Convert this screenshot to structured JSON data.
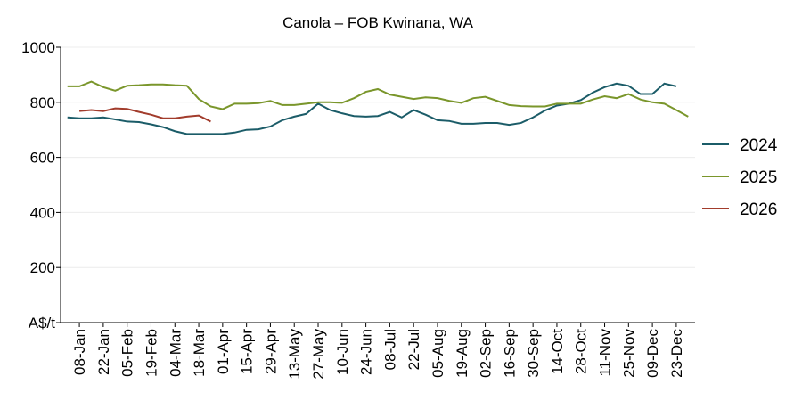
{
  "chart_data": {
    "type": "line",
    "title": "Canola – FOB Kwinana, WA",
    "categories": [
      null,
      "08-Jan",
      null,
      "22-Jan",
      null,
      "05-Feb",
      null,
      "19-Feb",
      null,
      "04-Mar",
      null,
      "18-Mar",
      null,
      "01-Apr",
      null,
      "15-Apr",
      null,
      "29-Apr",
      null,
      "13-May",
      null,
      "27-May",
      null,
      "10-Jun",
      null,
      "24-Jun",
      null,
      "08-Jul",
      null,
      "22-Jul",
      null,
      "05-Aug",
      null,
      "19-Aug",
      null,
      "02-Sep",
      null,
      "16-Sep",
      null,
      "30-Sep",
      null,
      "14-Oct",
      null,
      "28-Oct",
      null,
      "11-Nov",
      null,
      "25-Nov",
      null,
      "09-Dec",
      null,
      "23-Dec",
      null
    ],
    "series": [
      {
        "name": "2024",
        "color": "#1b5c68",
        "values": [
          745,
          742,
          742,
          745,
          738,
          730,
          728,
          720,
          710,
          695,
          685,
          685,
          685,
          685,
          690,
          700,
          702,
          712,
          735,
          748,
          758,
          795,
          772,
          760,
          750,
          748,
          750,
          765,
          745,
          772,
          755,
          735,
          732,
          722,
          722,
          725,
          725,
          718,
          725,
          745,
          770,
          788,
          795,
          808,
          835,
          855,
          868,
          860,
          830,
          830,
          868,
          858,
          null
        ]
      },
      {
        "name": "2025",
        "color": "#7a962b",
        "values": [
          858,
          858,
          875,
          855,
          842,
          860,
          862,
          865,
          865,
          862,
          860,
          812,
          785,
          775,
          795,
          795,
          797,
          805,
          790,
          790,
          795,
          800,
          800,
          798,
          815,
          838,
          848,
          828,
          820,
          812,
          818,
          815,
          805,
          798,
          815,
          820,
          805,
          790,
          786,
          785,
          785,
          795,
          795,
          795,
          810,
          822,
          815,
          830,
          810,
          800,
          795,
          772,
          748
        ]
      },
      {
        "name": "2026",
        "color": "#a23c2c",
        "values": [
          null,
          768,
          772,
          768,
          778,
          776,
          765,
          755,
          742,
          742,
          748,
          752,
          730,
          null,
          null,
          null,
          null,
          null,
          null,
          null,
          null,
          null,
          null,
          null,
          null,
          null,
          null,
          null,
          null,
          null,
          null,
          null,
          null,
          null,
          null,
          null,
          null,
          null,
          null,
          null,
          null,
          null,
          null,
          null,
          null,
          null,
          null,
          null,
          null,
          null,
          null,
          null,
          null
        ]
      }
    ],
    "ylim": [
      0,
      1000
    ],
    "yticks": [
      {
        "value": 0,
        "label": "A$/t"
      },
      200,
      400,
      600,
      800,
      1000
    ],
    "grid": true,
    "legend": "right"
  }
}
